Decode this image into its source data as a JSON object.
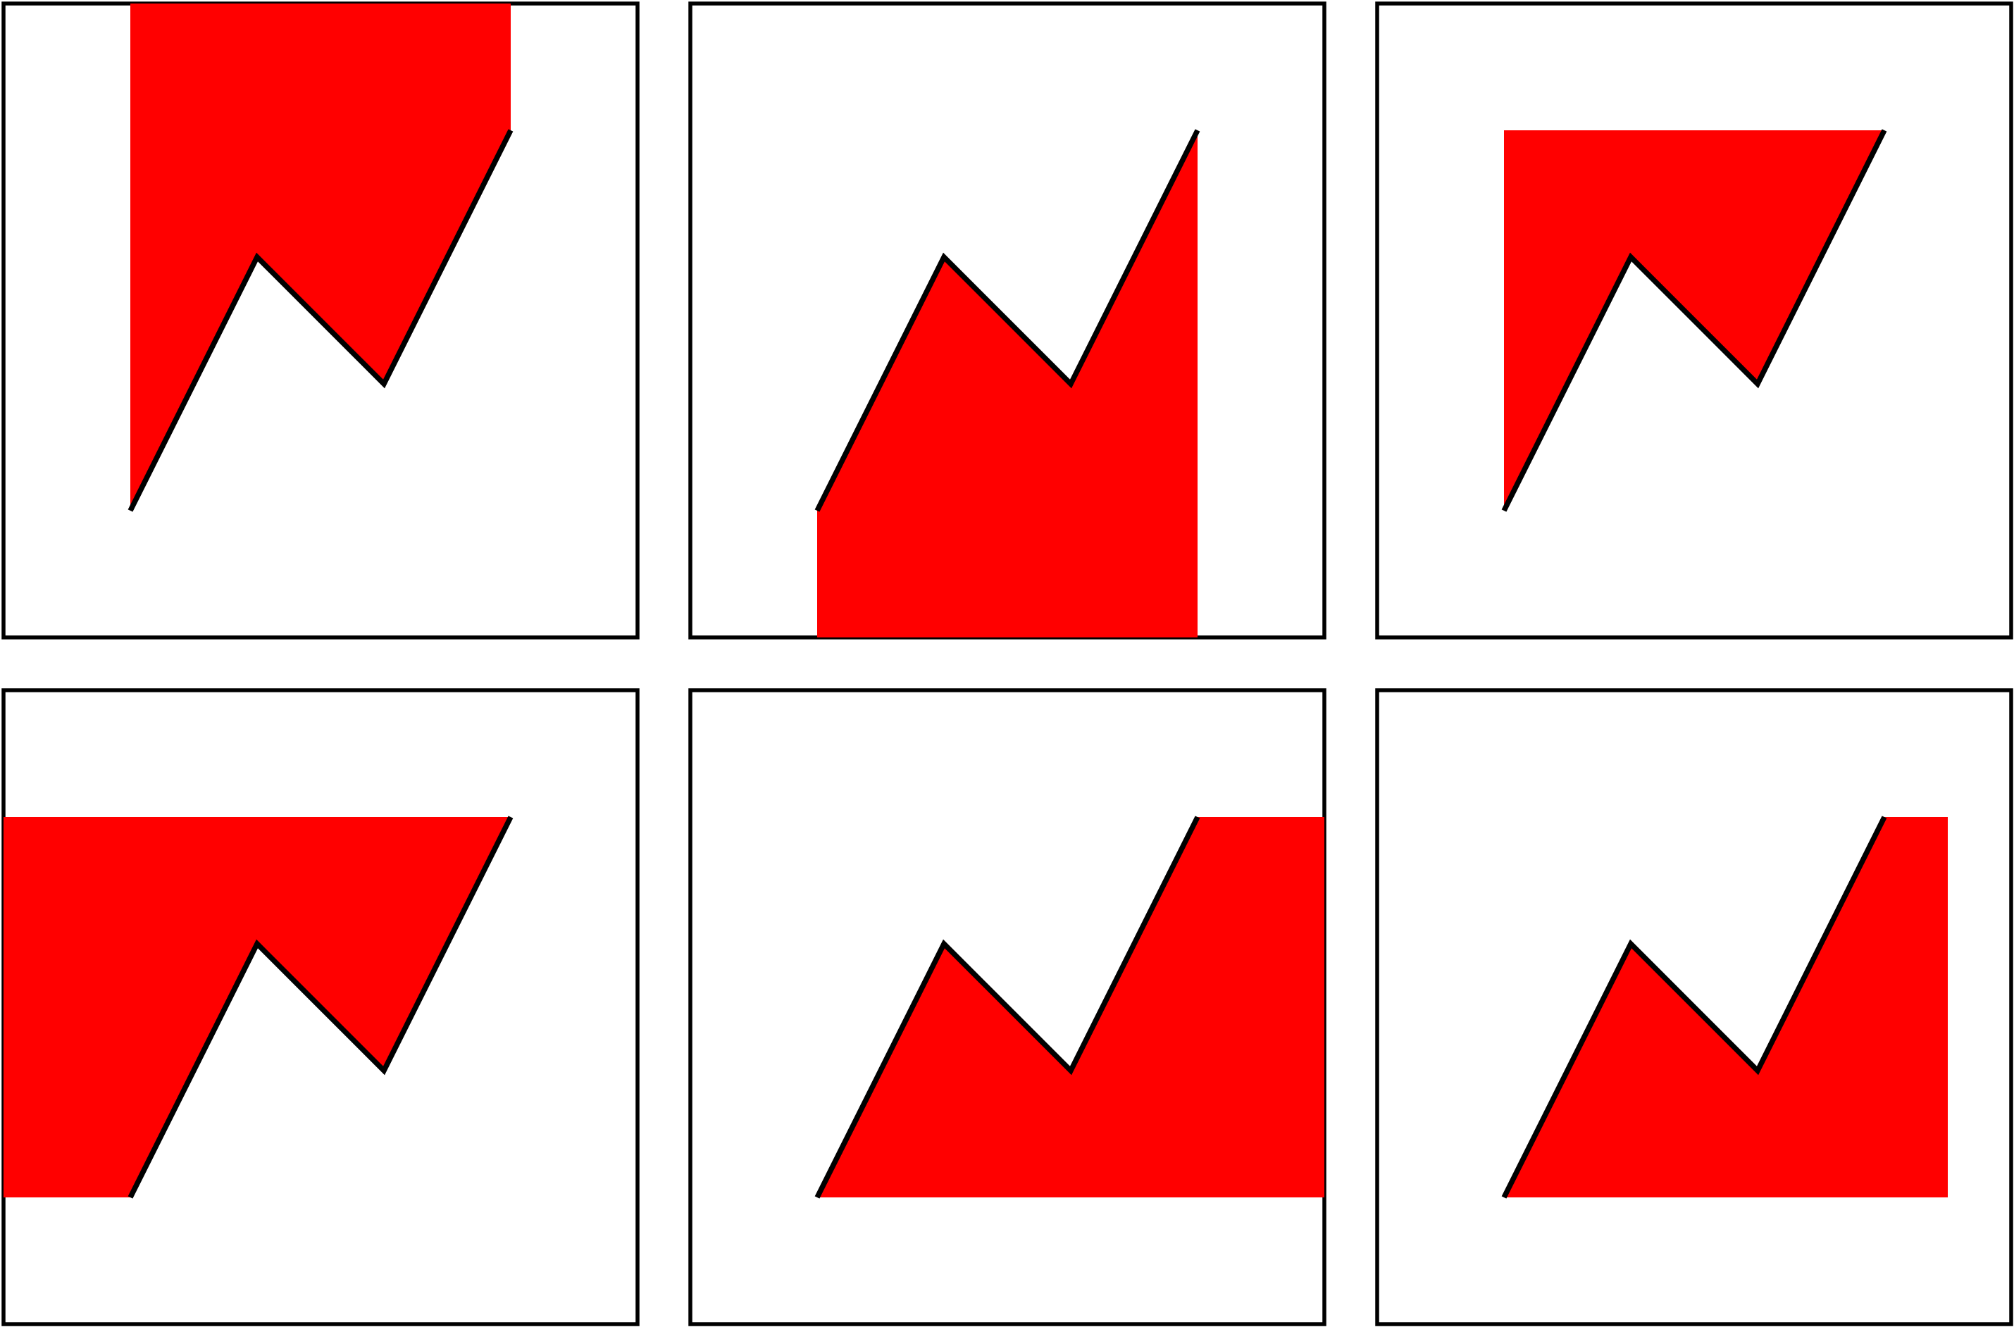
{
  "colors": {
    "fill": "#ff0000",
    "line": "#000000",
    "frame": "#000000",
    "background": "#ffffff"
  },
  "chart_data": [
    {
      "type": "area",
      "x": [
        0,
        1,
        2,
        3
      ],
      "y": [
        0,
        2,
        1,
        3
      ],
      "xlim": [
        -1,
        4
      ],
      "ylim": [
        -1,
        4
      ],
      "fill_to": "top",
      "grid": false
    },
    {
      "type": "area",
      "x": [
        0,
        1,
        2,
        3
      ],
      "y": [
        0,
        2,
        1,
        3
      ],
      "xlim": [
        -1,
        4
      ],
      "ylim": [
        -1,
        4
      ],
      "fill_to": "bottom",
      "grid": false
    },
    {
      "type": "area",
      "x": [
        0,
        1,
        2,
        3
      ],
      "y": [
        0,
        2,
        1,
        3
      ],
      "xlim": [
        -1,
        4
      ],
      "ylim": [
        -1,
        4
      ],
      "fill_to": "max_of_data",
      "grid": false
    },
    {
      "type": "area",
      "x": [
        0,
        1,
        2,
        3
      ],
      "y": [
        0,
        2,
        1,
        3
      ],
      "xlim": [
        -1,
        4
      ],
      "ylim": [
        -1,
        4
      ],
      "fill_to": "left",
      "grid": false
    },
    {
      "type": "area",
      "x": [
        0,
        1,
        2,
        3
      ],
      "y": [
        0,
        2,
        1,
        3
      ],
      "xlim": [
        -1,
        4
      ],
      "ylim": [
        -1,
        4
      ],
      "fill_to": "right",
      "grid": false
    },
    {
      "type": "area",
      "x": [
        0,
        1,
        2,
        3
      ],
      "y": [
        0,
        2,
        1,
        3
      ],
      "xlim": [
        -1,
        4
      ],
      "ylim": [
        -1,
        4
      ],
      "fill_to": "x_value",
      "fill_to_value": 3.5,
      "grid": false
    }
  ]
}
